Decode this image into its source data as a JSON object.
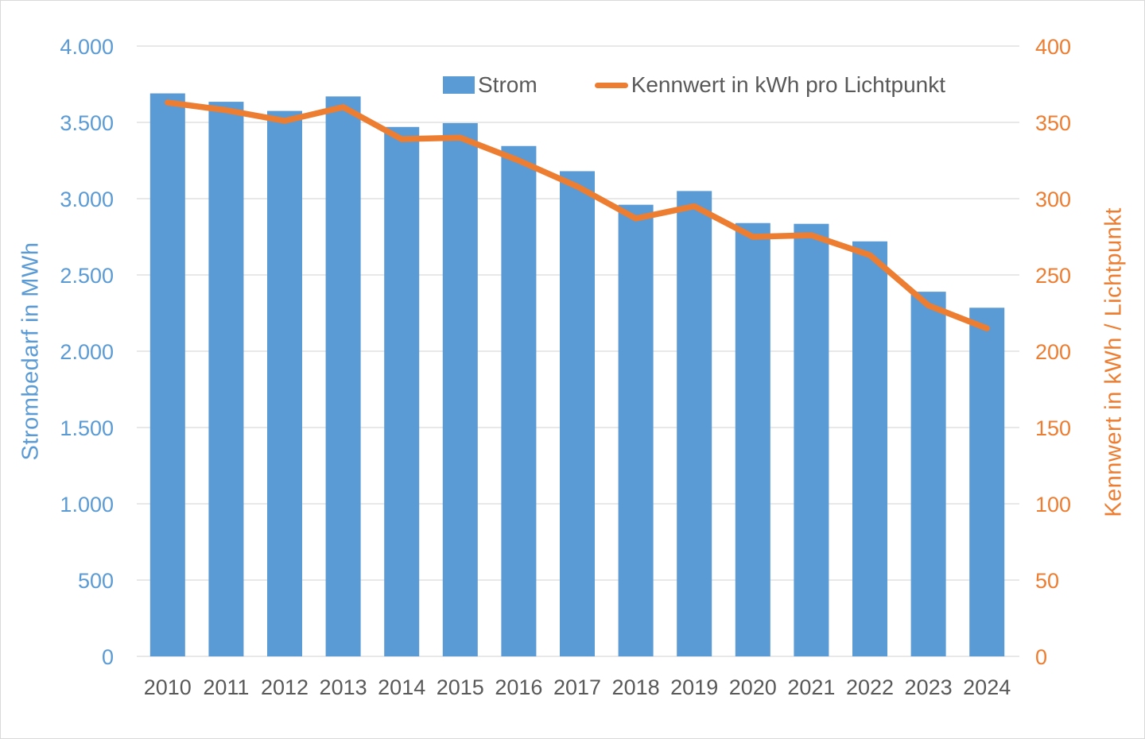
{
  "chart_data": {
    "type": "bar",
    "subtype": "combo-bar-line-dual-axis",
    "categories": [
      "2010",
      "2011",
      "2012",
      "2013",
      "2014",
      "2015",
      "2016",
      "2017",
      "2018",
      "2019",
      "2020",
      "2021",
      "2022",
      "2023",
      "2024"
    ],
    "series": [
      {
        "name": "Strom",
        "type": "bar",
        "axis": "left",
        "color": "#5B9BD5",
        "values": [
          3690,
          3635,
          3575,
          3670,
          3470,
          3495,
          3345,
          3180,
          2960,
          3050,
          2840,
          2835,
          2720,
          2390,
          2285
        ]
      },
      {
        "name": "Kennwert in kWh pro Lichtpunkt",
        "type": "line",
        "axis": "right",
        "color": "#ED7D31",
        "values": [
          363,
          358,
          351,
          360,
          339,
          340,
          325,
          308,
          287,
          295,
          275,
          276,
          263,
          230,
          215
        ]
      }
    ],
    "left_axis": {
      "title": "Strombedarf in MWh",
      "min": 0,
      "max": 4000,
      "tick_step": 500,
      "tick_labels_top_to_bottom": [
        "4.000",
        "3.500",
        "3.000",
        "2.500",
        "2.000",
        "1.500",
        "1.000",
        "500",
        "0"
      ],
      "color": "#5B9BD5"
    },
    "right_axis": {
      "title": "Kennwert in kWh / Lichtpunkt",
      "min": 0,
      "max": 400,
      "tick_step": 50,
      "tick_labels_top_to_bottom": [
        "400",
        "350",
        "300",
        "250",
        "200",
        "150",
        "100",
        "50",
        "0"
      ],
      "color": "#ED7D31"
    },
    "x_axis": {
      "tick_color": "#595959"
    },
    "legend": {
      "position": "top",
      "items": [
        {
          "label": "Strom",
          "marker": "bar-swatch"
        },
        {
          "label": "Kennwert in kWh pro Lichtpunkt",
          "marker": "line-swatch"
        }
      ]
    },
    "grid": "horizontal",
    "gridline_color": "#D9D9D9",
    "background_color": "#FFFFFF"
  }
}
